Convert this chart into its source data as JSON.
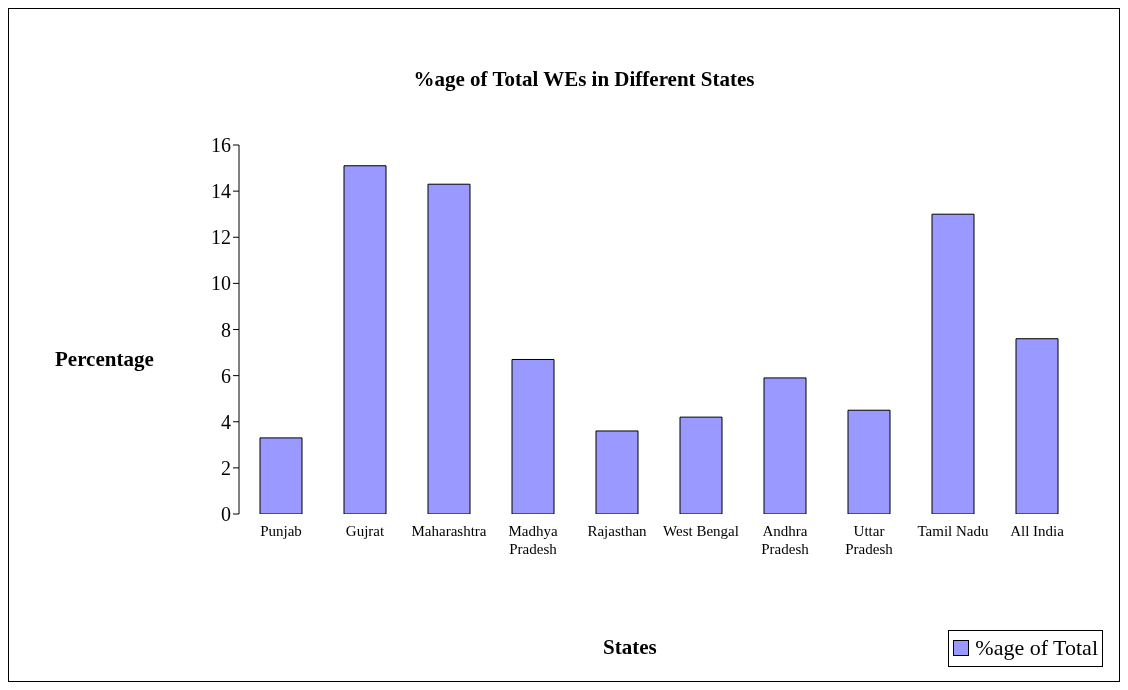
{
  "chart_data": {
    "type": "bar",
    "title": "%age of Total WEs in Different States",
    "xlabel": "States",
    "ylabel": "Percentage",
    "categories": [
      "Punjab",
      "Gujrat",
      "Maharashtra",
      "Madhya Pradesh",
      "Rajasthan",
      "West Bengal",
      "Andhra Pradesh",
      "Uttar Pradesh",
      "Tamil Nadu",
      "All India"
    ],
    "series": [
      {
        "name": "%age of Total",
        "color": "#9999ff",
        "values": [
          3.3,
          15.1,
          14.3,
          6.7,
          3.6,
          4.2,
          5.9,
          4.5,
          13.0,
          7.6
        ]
      }
    ],
    "ylim": [
      0,
      16
    ],
    "yticks": [
      0,
      2,
      4,
      6,
      8,
      10,
      12,
      14,
      16
    ],
    "grid": false,
    "legend": "bottom right"
  }
}
